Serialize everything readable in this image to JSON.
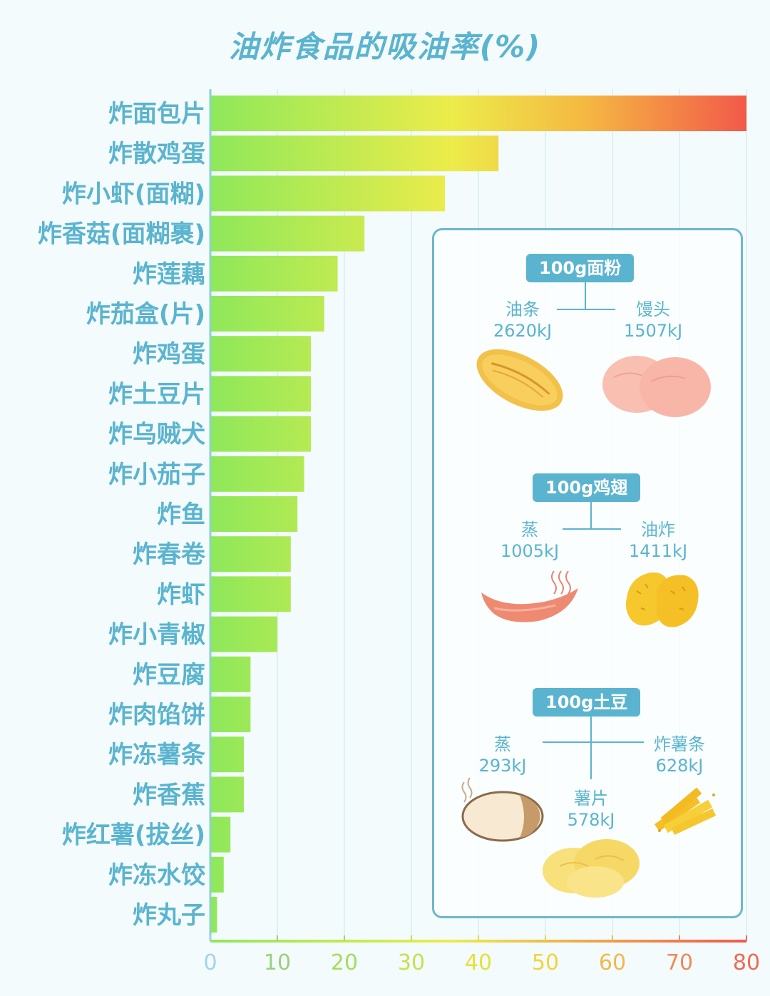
{
  "title": "油炸食品的吸油率(%)",
  "chart_data": {
    "type": "bar",
    "orientation": "horizontal",
    "categories": [
      "炸面包片",
      "炸散鸡蛋",
      "炸小虾(面糊)",
      "炸香菇(面糊裹)",
      "炸莲藕",
      "炸茄盒(片)",
      "炸鸡蛋",
      "炸土豆片",
      "炸乌贼犬",
      "炸小茄子",
      "炸鱼",
      "炸春卷",
      "炸虾",
      "炸小青椒",
      "炸豆腐",
      "炸肉馅饼",
      "炸冻薯条",
      "炸香蕉",
      "炸红薯(拔丝)",
      "炸冻水饺",
      "炸丸子"
    ],
    "values": [
      80,
      43,
      35,
      23,
      19,
      17,
      15,
      15,
      15,
      14,
      13,
      12,
      12,
      10,
      6,
      6,
      5,
      5,
      3,
      2,
      1
    ],
    "xlim": [
      0,
      80
    ],
    "xticks": [
      0,
      10,
      20,
      30,
      40,
      50,
      60,
      70,
      80
    ],
    "grid": true,
    "colors": {
      "low": "#8ee85a",
      "mid": "#ecec4a",
      "high": "#f2594a",
      "axis": "#8ccfdc",
      "label": "#5ab4cf"
    }
  },
  "panel": {
    "flour": {
      "title": "100g面粉",
      "left": {
        "name": "油条",
        "energy": "2620kJ",
        "icon": "youtiao-icon"
      },
      "right": {
        "name": "馒头",
        "energy": "1507kJ",
        "icon": "mantou-icon"
      }
    },
    "wing": {
      "title": "100g鸡翅",
      "left": {
        "name": "蒸",
        "energy": "1005kJ",
        "icon": "steamed-wing-icon"
      },
      "right": {
        "name": "油炸",
        "energy": "1411kJ",
        "icon": "fried-wing-icon"
      }
    },
    "potato": {
      "title": "100g土豆",
      "left": {
        "name": "蒸",
        "energy": "293kJ",
        "icon": "steamed-potato-icon"
      },
      "right": {
        "name": "炸薯条",
        "energy": "628kJ",
        "icon": "fries-icon"
      },
      "center": {
        "name": "薯片",
        "energy": "578kJ",
        "icon": "chips-icon"
      }
    }
  }
}
